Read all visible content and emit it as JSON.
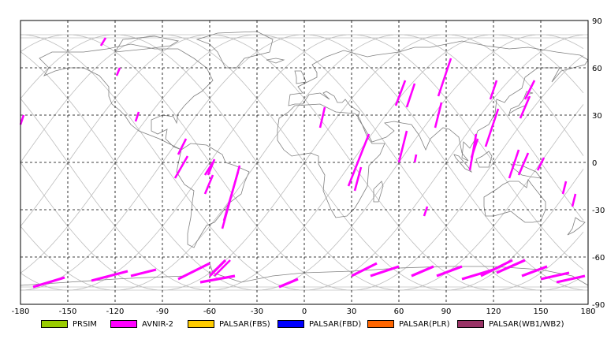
{
  "map": {
    "projection": "equirectangular",
    "lon_range": [
      -180,
      180
    ],
    "lat_range": [
      -90,
      90
    ],
    "lon_ticks": [
      "-180",
      "-150",
      "-120",
      "-90",
      "-60",
      "-30",
      "0",
      "30",
      "60",
      "90",
      "120",
      "150",
      "180"
    ],
    "lat_ticks": [
      "90",
      "60",
      "30",
      "0",
      "-30",
      "-60",
      "-90"
    ],
    "grid": "dashed",
    "colors": {
      "coastline": "#808080",
      "orbit_track": "#c0c0c0",
      "grid": "#000000",
      "footprint": "#ff00ff"
    }
  },
  "legend": [
    {
      "label": "PRSIM",
      "color": "#99cc00"
    },
    {
      "label": "AVNIR-2",
      "color": "#ff00ff"
    },
    {
      "label": "PALSAR(FBS)",
      "color": "#ffcc00"
    },
    {
      "label": "PALSAR(FBD)",
      "color": "#0000ff"
    },
    {
      "label": "PALSAR(PLR)",
      "color": "#ff6600"
    },
    {
      "label": "PALSAR(WB1/WB2)",
      "color": "#993366"
    }
  ],
  "avnir2_segments": [
    [
      -180,
      24,
      -178,
      30
    ],
    [
      -129,
      74,
      -126,
      79
    ],
    [
      -119,
      55,
      -117,
      60
    ],
    [
      -107,
      26,
      -105,
      32
    ],
    [
      -82,
      -10,
      -74,
      4
    ],
    [
      -80,
      5,
      -75,
      15
    ],
    [
      -63,
      -20,
      -58,
      -8
    ],
    [
      -61,
      -8,
      -57,
      2
    ],
    [
      -63,
      -8,
      -58,
      0
    ],
    [
      -52,
      -42,
      -41,
      -2
    ],
    [
      -51,
      -37,
      -42,
      -6
    ],
    [
      -57,
      -72,
      -47,
      -62
    ],
    [
      10,
      22,
      13,
      35
    ],
    [
      28,
      -15,
      41,
      18
    ],
    [
      32,
      -18,
      36,
      -3
    ],
    [
      60,
      0,
      65,
      20
    ],
    [
      58,
      36,
      64,
      52
    ],
    [
      65,
      35,
      70,
      50
    ],
    [
      70,
      0,
      71,
      5
    ],
    [
      85,
      42,
      93,
      66
    ],
    [
      83,
      22,
      87,
      38
    ],
    [
      76,
      -34,
      78,
      -28
    ],
    [
      105,
      -5,
      109,
      18
    ],
    [
      106,
      3,
      110,
      15
    ],
    [
      115,
      10,
      123,
      34
    ],
    [
      118,
      40,
      122,
      52
    ],
    [
      130,
      -10,
      136,
      8
    ],
    [
      136,
      -8,
      142,
      6
    ],
    [
      137,
      28,
      143,
      42
    ],
    [
      140,
      40,
      146,
      52
    ],
    [
      148,
      -5,
      152,
      3
    ],
    [
      164,
      -20,
      166,
      -12
    ],
    [
      170,
      -28,
      172,
      -20
    ]
  ],
  "avnir2_antarctic": [
    [
      -172,
      -79,
      -152,
      -73
    ],
    [
      -135,
      -75,
      -112,
      -69
    ],
    [
      -110,
      -72,
      -94,
      -68
    ],
    [
      -80,
      -74,
      -60,
      -64
    ],
    [
      -60,
      -72,
      -50,
      -62
    ],
    [
      -66,
      -76,
      -44,
      -72
    ],
    [
      -16,
      -79,
      -4,
      -74
    ],
    [
      30,
      -72,
      46,
      -64
    ],
    [
      42,
      -72,
      60,
      -66
    ],
    [
      68,
      -72,
      82,
      -66
    ],
    [
      84,
      -72,
      100,
      -66
    ],
    [
      100,
      -74,
      120,
      -68
    ],
    [
      112,
      -72,
      132,
      -62
    ],
    [
      122,
      -70,
      140,
      -62
    ],
    [
      138,
      -72,
      154,
      -66
    ],
    [
      150,
      -74,
      168,
      -70
    ],
    [
      160,
      -76,
      178,
      -72
    ]
  ]
}
